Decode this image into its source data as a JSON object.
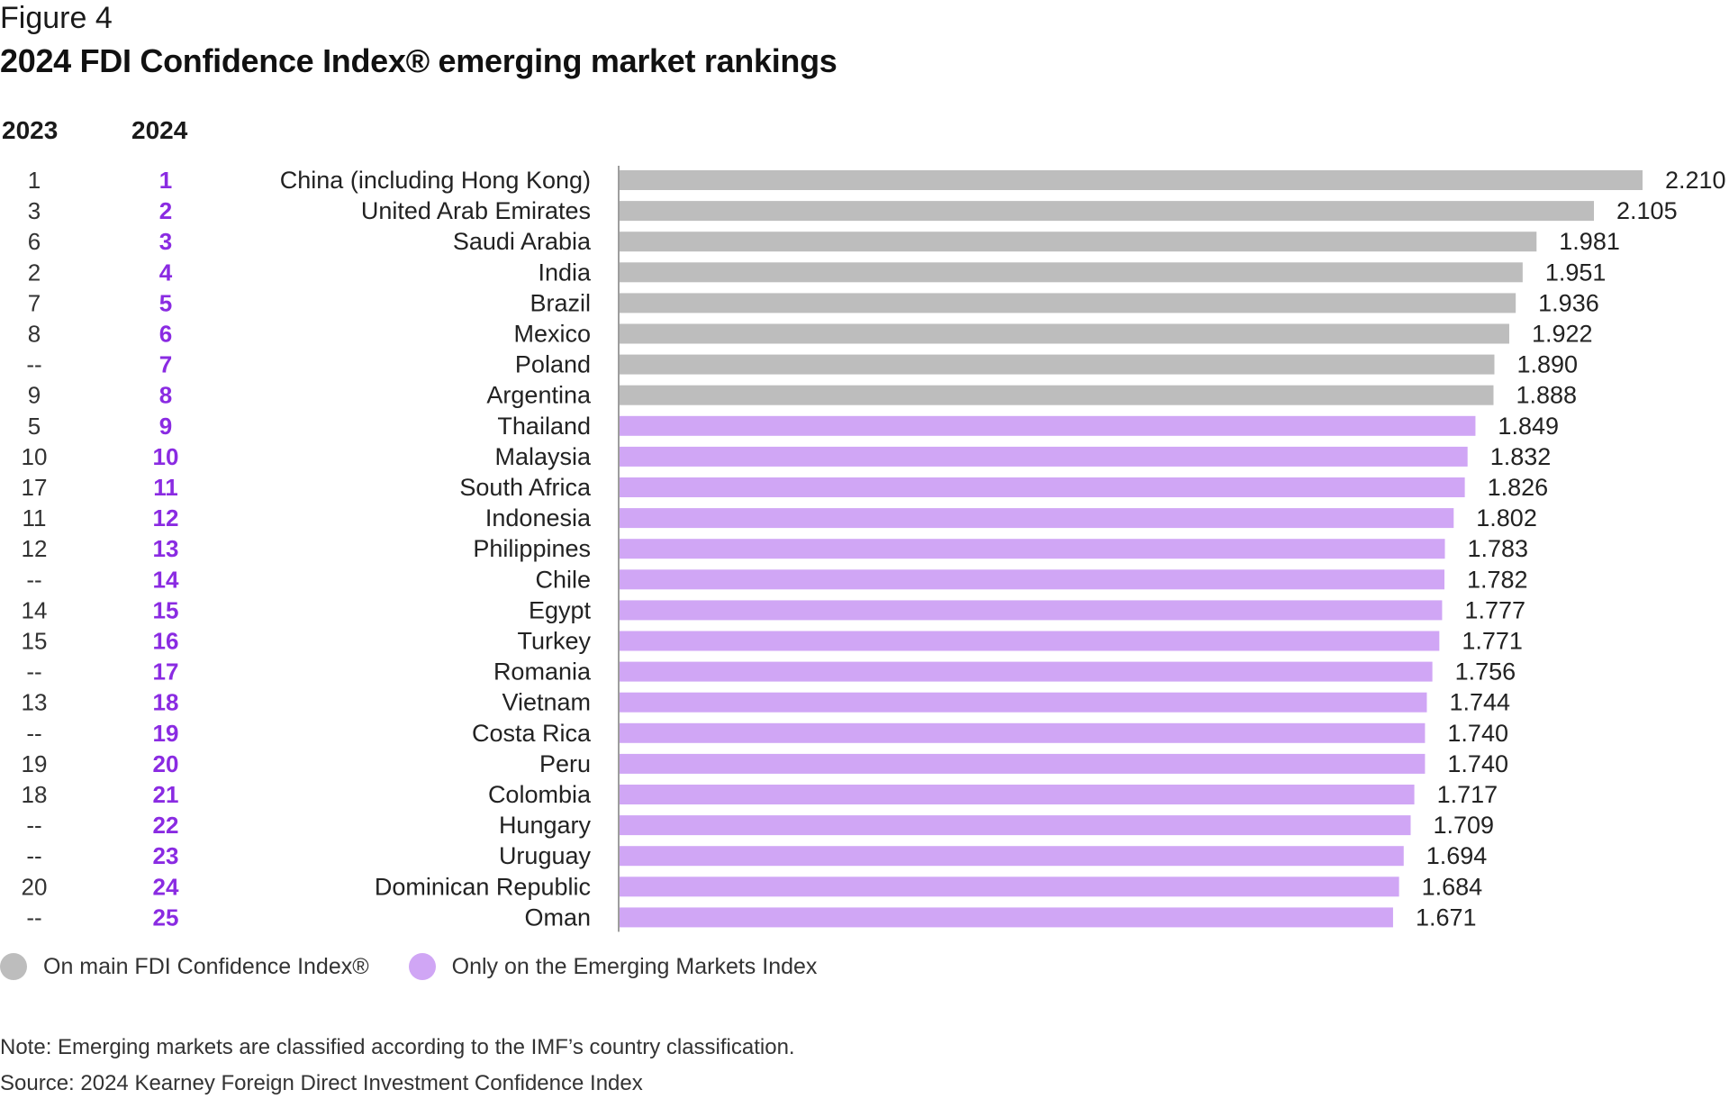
{
  "figure_label": "Figure 4",
  "title": "2024 FDI Confidence Index® emerging market rankings",
  "columns": {
    "prev_year": "2023",
    "curr_year": "2024"
  },
  "colors": {
    "main_index": "#bdbdbd",
    "emerging_only": "#d0a6f5",
    "rank_2024": "#8a2be2",
    "axis": "#9e9e9e"
  },
  "legend": {
    "main_label": "On main FDI Confidence Index®",
    "emerging_label": "Only on the Emerging Markets Index"
  },
  "note": "Note: Emerging markets are classified according to the IMF’s country classification.",
  "source": "Source: 2024 Kearney Foreign Direct Investment Confidence Index",
  "chart_data": {
    "type": "bar",
    "orientation": "horizontal",
    "xlim": [
      0,
      2.21
    ],
    "rows": [
      {
        "rank_2023": "1",
        "rank_2024": "1",
        "country": "China (including Hong Kong)",
        "value": 2.21,
        "label": "2.210",
        "group": "main"
      },
      {
        "rank_2023": "3",
        "rank_2024": "2",
        "country": "United Arab Emirates",
        "value": 2.105,
        "label": "2.105",
        "group": "main"
      },
      {
        "rank_2023": "6",
        "rank_2024": "3",
        "country": "Saudi Arabia",
        "value": 1.981,
        "label": "1.981",
        "group": "main"
      },
      {
        "rank_2023": "2",
        "rank_2024": "4",
        "country": "India",
        "value": 1.951,
        "label": "1.951",
        "group": "main"
      },
      {
        "rank_2023": "7",
        "rank_2024": "5",
        "country": "Brazil",
        "value": 1.936,
        "label": "1.936",
        "group": "main"
      },
      {
        "rank_2023": "8",
        "rank_2024": "6",
        "country": "Mexico",
        "value": 1.922,
        "label": "1.922",
        "group": "main"
      },
      {
        "rank_2023": "--",
        "rank_2024": "7",
        "country": "Poland",
        "value": 1.89,
        "label": "1.890",
        "group": "main"
      },
      {
        "rank_2023": "9",
        "rank_2024": "8",
        "country": "Argentina",
        "value": 1.888,
        "label": "1.888",
        "group": "main"
      },
      {
        "rank_2023": "5",
        "rank_2024": "9",
        "country": "Thailand",
        "value": 1.849,
        "label": "1.849",
        "group": "emerging"
      },
      {
        "rank_2023": "10",
        "rank_2024": "10",
        "country": "Malaysia",
        "value": 1.832,
        "label": "1.832",
        "group": "emerging"
      },
      {
        "rank_2023": "17",
        "rank_2024": "11",
        "country": "South Africa",
        "value": 1.826,
        "label": "1.826",
        "group": "emerging"
      },
      {
        "rank_2023": "11",
        "rank_2024": "12",
        "country": "Indonesia",
        "value": 1.802,
        "label": "1.802",
        "group": "emerging"
      },
      {
        "rank_2023": "12",
        "rank_2024": "13",
        "country": "Philippines",
        "value": 1.783,
        "label": "1.783",
        "group": "emerging"
      },
      {
        "rank_2023": "--",
        "rank_2024": "14",
        "country": "Chile",
        "value": 1.782,
        "label": "1.782",
        "group": "emerging"
      },
      {
        "rank_2023": "14",
        "rank_2024": "15",
        "country": "Egypt",
        "value": 1.777,
        "label": "1.777",
        "group": "emerging"
      },
      {
        "rank_2023": "15",
        "rank_2024": "16",
        "country": "Turkey",
        "value": 1.771,
        "label": "1.771",
        "group": "emerging"
      },
      {
        "rank_2023": "--",
        "rank_2024": "17",
        "country": "Romania",
        "value": 1.756,
        "label": "1.756",
        "group": "emerging"
      },
      {
        "rank_2023": "13",
        "rank_2024": "18",
        "country": "Vietnam",
        "value": 1.744,
        "label": "1.744",
        "group": "emerging"
      },
      {
        "rank_2023": "--",
        "rank_2024": "19",
        "country": "Costa Rica",
        "value": 1.74,
        "label": "1.740",
        "group": "emerging"
      },
      {
        "rank_2023": "19",
        "rank_2024": "20",
        "country": "Peru",
        "value": 1.74,
        "label": "1.740",
        "group": "emerging"
      },
      {
        "rank_2023": "18",
        "rank_2024": "21",
        "country": "Colombia",
        "value": 1.717,
        "label": "1.717",
        "group": "emerging"
      },
      {
        "rank_2023": "--",
        "rank_2024": "22",
        "country": "Hungary",
        "value": 1.709,
        "label": "1.709",
        "group": "emerging"
      },
      {
        "rank_2023": "--",
        "rank_2024": "23",
        "country": "Uruguay",
        "value": 1.694,
        "label": "1.694",
        "group": "emerging"
      },
      {
        "rank_2023": "20",
        "rank_2024": "24",
        "country": "Dominican Republic",
        "value": 1.684,
        "label": "1.684",
        "group": "emerging"
      },
      {
        "rank_2023": "--",
        "rank_2024": "25",
        "country": "Oman",
        "value": 1.671,
        "label": "1.671",
        "group": "emerging"
      }
    ]
  }
}
